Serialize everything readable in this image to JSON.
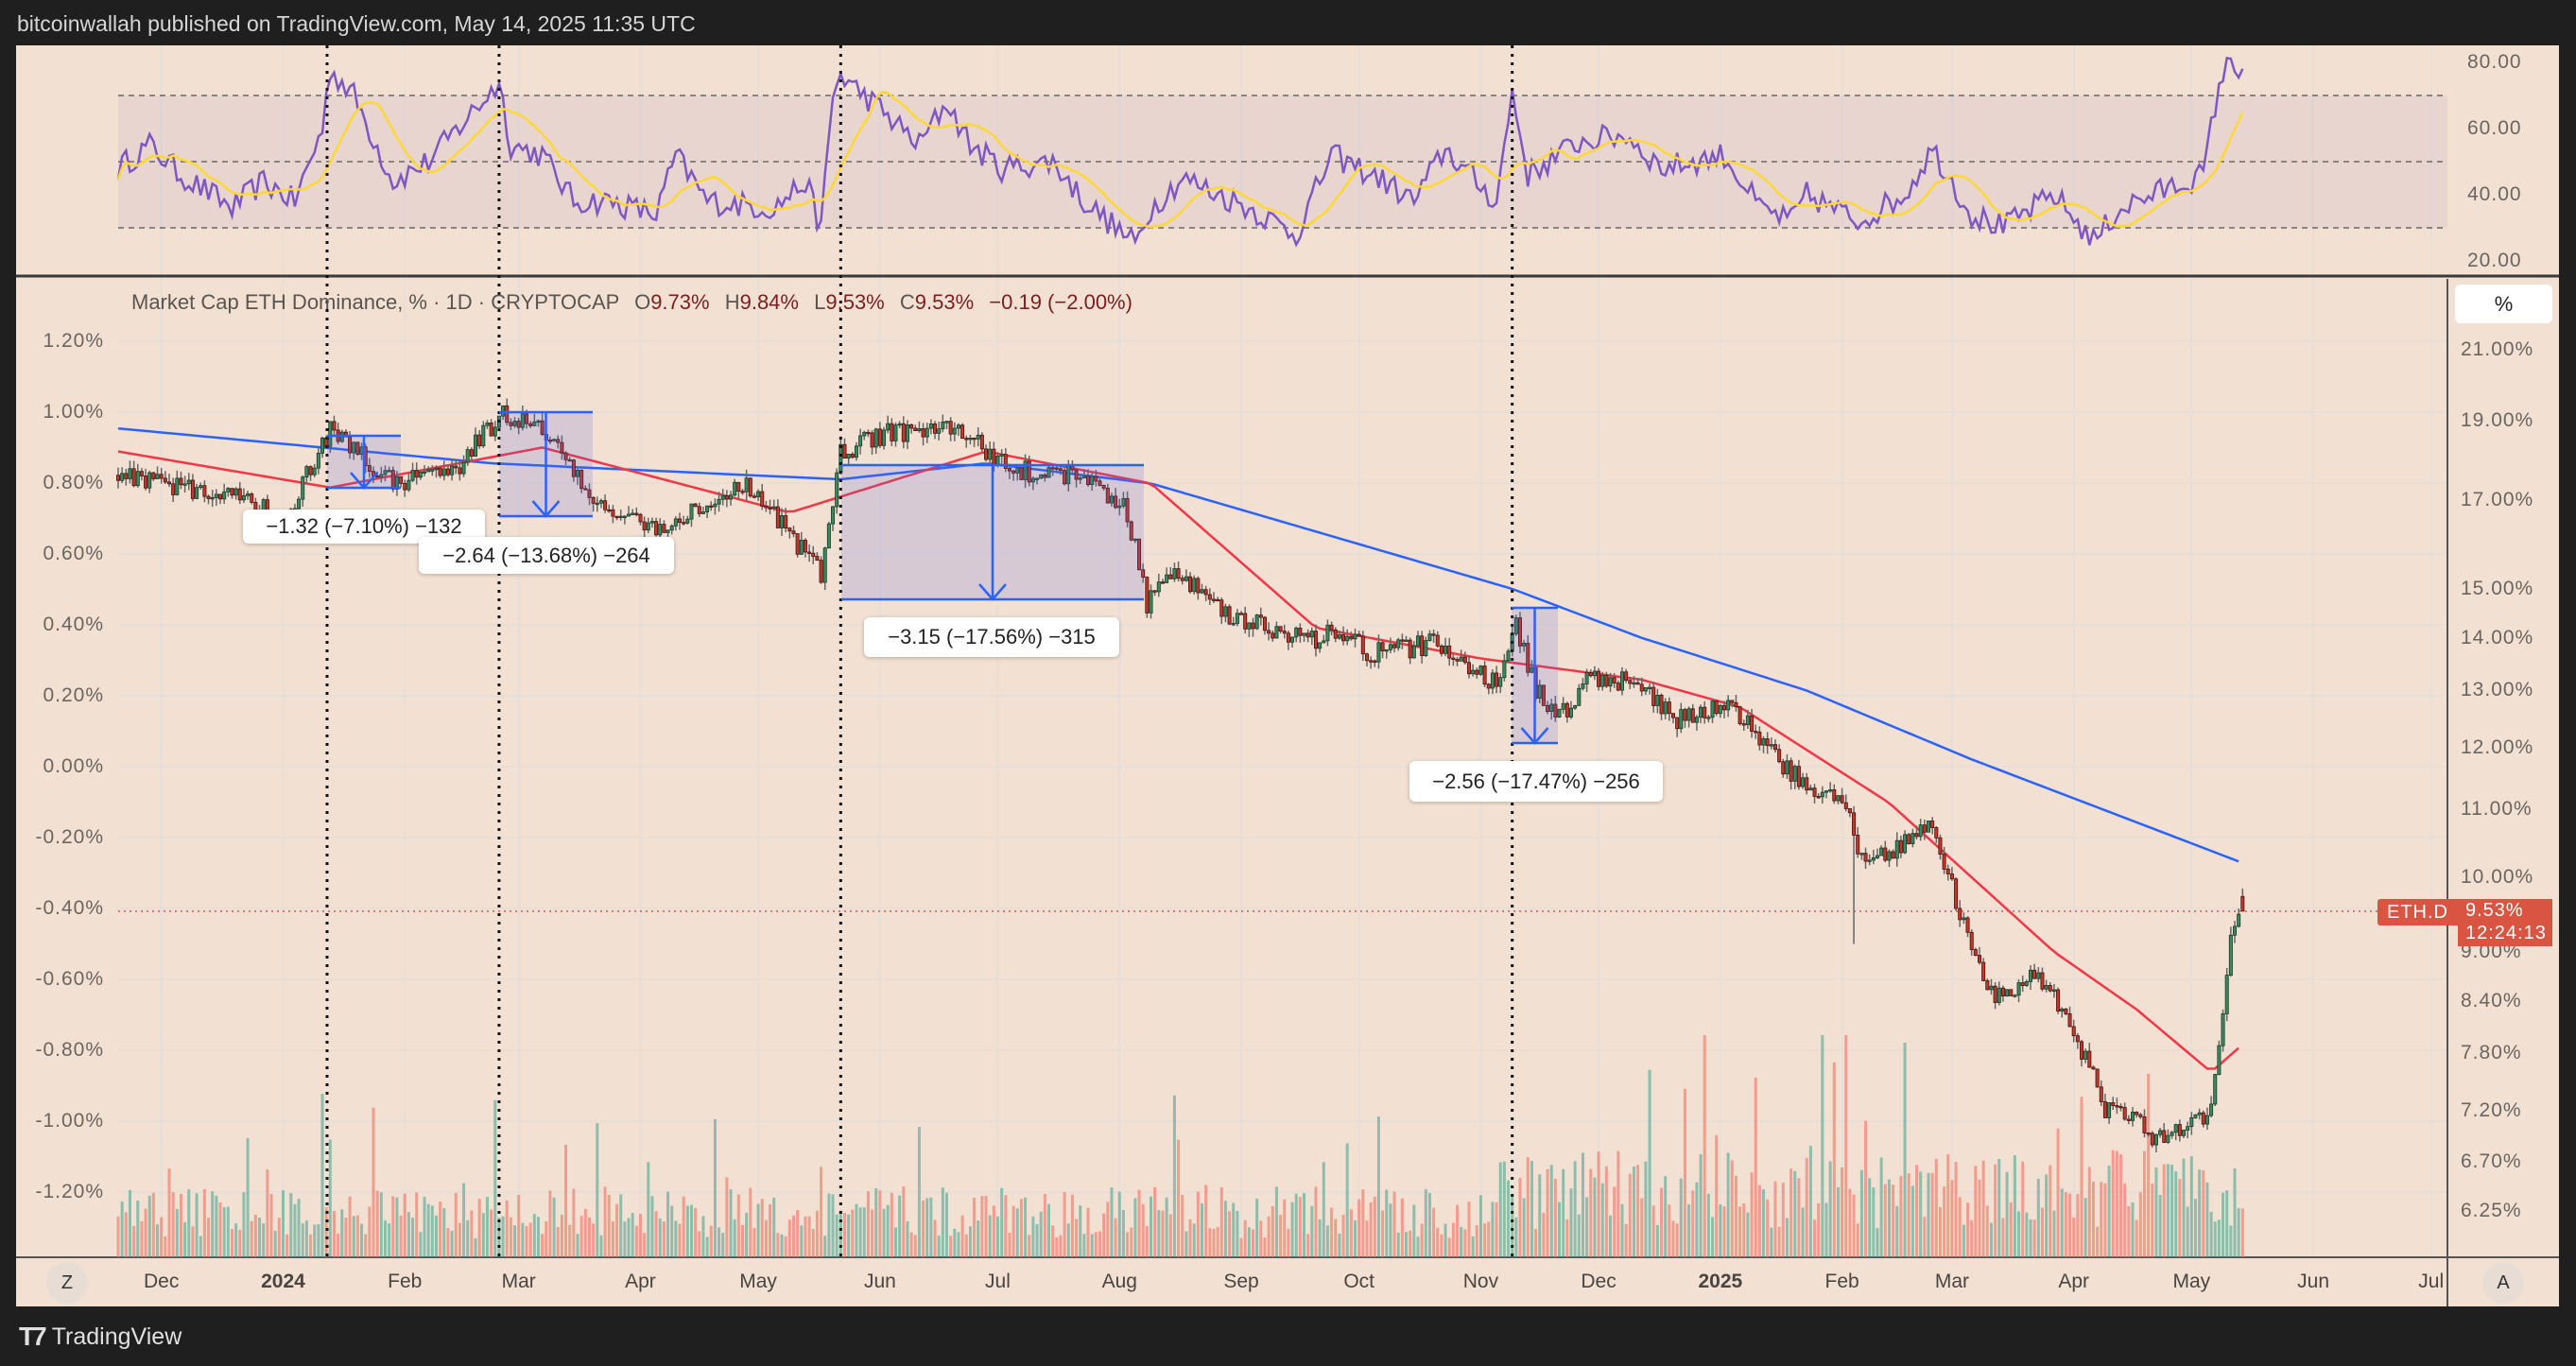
{
  "header": {
    "published": "bitcoinwallah published on TradingView.com, May 14, 2025 11:35 UTC"
  },
  "legend": {
    "title": "Market Cap ETH Dominance, % · 1D · CRYPTOCAP",
    "o_label": "O",
    "o": "9.73%",
    "h_label": "H",
    "h": "9.84%",
    "l_label": "L",
    "l": "9.53%",
    "c_label": "C",
    "c": "9.53%",
    "change": "−0.19 (−2.00%)"
  },
  "rsi_axis": [
    "80.00",
    "60.00",
    "40.00",
    "20.00"
  ],
  "right_axis": [
    "21.00%",
    "19.00%",
    "17.00%",
    "15.00%",
    "14.00%",
    "13.00%",
    "12.00%",
    "11.00%",
    "10.00%",
    "9.00%",
    "8.40%",
    "7.80%",
    "7.20%",
    "6.70%",
    "6.25%"
  ],
  "left_axis": [
    "1.20%",
    "1.00%",
    "0.80%",
    "0.60%",
    "0.40%",
    "0.20%",
    "0.00%",
    "-0.20%",
    "-0.40%",
    "-0.60%",
    "-0.80%",
    "-1.00%",
    "-1.20%"
  ],
  "time_axis": [
    "Dec",
    "2024",
    "Feb",
    "Mar",
    "Apr",
    "May",
    "Jun",
    "Jul",
    "Aug",
    "Sep",
    "Oct",
    "Nov",
    "Dec",
    "2025",
    "Feb",
    "Mar",
    "Apr",
    "May",
    "Jun",
    "Jul"
  ],
  "buttons": {
    "scale": "%",
    "auto": "A",
    "zoom": "Z"
  },
  "price_tag": {
    "symbol": "ETH.D",
    "price": "9.53%",
    "countdown": "12:24:13"
  },
  "measurements": [
    {
      "label": "−1.32 (−7.10%) −132"
    },
    {
      "label": "−2.64 (−13.68%) −264"
    },
    {
      "label": "−3.15 (−17.56%) −315"
    },
    {
      "label": "−2.56 (−17.47%) −256"
    }
  ],
  "footer": {
    "brand": "TradingView"
  },
  "colors": {
    "background": "#f2e0d2",
    "up": "#3a8a5e",
    "down": "#c0392b",
    "ma_fast": "#f23645",
    "ma_slow": "#2962ff",
    "rsi": "#7e57c2",
    "rsi_ma": "#fdd835",
    "measure": "#2962ff"
  },
  "chart_data": {
    "type": "candlestick",
    "title": "Market Cap ETH Dominance, % · 1D · CRYPTOCAP",
    "x_unit": "days since first bar",
    "price_keypoints": [
      [
        0,
        17.6
      ],
      [
        31,
        17.0
      ],
      [
        43,
        16.6
      ],
      [
        54,
        18.8
      ],
      [
        70,
        17.4
      ],
      [
        87,
        17.9
      ],
      [
        98,
        19.2
      ],
      [
        108,
        18.8
      ],
      [
        121,
        17.0
      ],
      [
        137,
        16.3
      ],
      [
        160,
        17.3
      ],
      [
        171,
        16.2
      ],
      [
        179,
        15.3
      ],
      [
        184,
        18.2
      ],
      [
        196,
        18.7
      ],
      [
        213,
        18.8
      ],
      [
        229,
        17.7
      ],
      [
        246,
        17.6
      ],
      [
        257,
        16.7
      ],
      [
        262,
        14.7
      ],
      [
        267,
        15.5
      ],
      [
        284,
        14.4
      ],
      [
        305,
        13.9
      ],
      [
        311,
        14.2
      ],
      [
        319,
        13.7
      ],
      [
        336,
        13.9
      ],
      [
        351,
        13.1
      ],
      [
        356,
        14.3
      ],
      [
        361,
        13.0
      ],
      [
        367,
        12.5
      ],
      [
        374,
        13.2
      ],
      [
        384,
        13.2
      ],
      [
        397,
        12.5
      ],
      [
        411,
        12.7
      ],
      [
        422,
        11.8
      ],
      [
        430,
        11.4
      ],
      [
        441,
        11.1
      ],
      [
        443,
        10.3
      ],
      [
        451,
        10.3
      ],
      [
        462,
        10.8
      ],
      [
        468,
        9.7
      ],
      [
        472,
        9.0
      ],
      [
        478,
        8.4
      ],
      [
        489,
        8.7
      ],
      [
        497,
        8.2
      ],
      [
        506,
        7.2
      ],
      [
        514,
        7.1
      ],
      [
        518,
        6.9
      ],
      [
        533,
        7.2
      ],
      [
        536,
        8.2
      ],
      [
        538,
        9.2
      ],
      [
        541,
        9.53
      ]
    ],
    "ma_fast_keypoints": [
      [
        0,
        18.2
      ],
      [
        54,
        17.3
      ],
      [
        108,
        18.3
      ],
      [
        171,
        16.7
      ],
      [
        221,
        18.2
      ],
      [
        263,
        17.4
      ],
      [
        305,
        14.2
      ],
      [
        347,
        13.6
      ],
      [
        388,
        13.2
      ],
      [
        413,
        12.7
      ],
      [
        451,
        11.1
      ],
      [
        493,
        9.0
      ],
      [
        514,
        8.3
      ],
      [
        533,
        7.6
      ],
      [
        541,
        7.9
      ]
    ],
    "ma_slow_keypoints": [
      [
        0,
        18.8
      ],
      [
        95,
        17.9
      ],
      [
        184,
        17.5
      ],
      [
        221,
        17.9
      ],
      [
        263,
        17.4
      ],
      [
        355,
        15.0
      ],
      [
        388,
        14.0
      ],
      [
        430,
        13.0
      ],
      [
        472,
        11.8
      ],
      [
        514,
        10.8
      ],
      [
        541,
        10.2
      ]
    ],
    "rsi_keypoints": [
      [
        0,
        48
      ],
      [
        8,
        55
      ],
      [
        16,
        46
      ],
      [
        29,
        36
      ],
      [
        37,
        44
      ],
      [
        45,
        38
      ],
      [
        52,
        60
      ],
      [
        54,
        78
      ],
      [
        60,
        70
      ],
      [
        70,
        44
      ],
      [
        79,
        50
      ],
      [
        91,
        66
      ],
      [
        97,
        74
      ],
      [
        100,
        55
      ],
      [
        108,
        52
      ],
      [
        116,
        38
      ],
      [
        125,
        38
      ],
      [
        137,
        34
      ],
      [
        142,
        52
      ],
      [
        150,
        38
      ],
      [
        167,
        36
      ],
      [
        175,
        44
      ],
      [
        179,
        30
      ],
      [
        182,
        70
      ],
      [
        184,
        76
      ],
      [
        192,
        68
      ],
      [
        204,
        55
      ],
      [
        211,
        68
      ],
      [
        217,
        55
      ],
      [
        225,
        48
      ],
      [
        238,
        50
      ],
      [
        246,
        38
      ],
      [
        259,
        25
      ],
      [
        263,
        36
      ],
      [
        271,
        45
      ],
      [
        288,
        36
      ],
      [
        300,
        28
      ],
      [
        309,
        52
      ],
      [
        321,
        45
      ],
      [
        330,
        38
      ],
      [
        338,
        54
      ],
      [
        344,
        46
      ],
      [
        351,
        38
      ],
      [
        355,
        71
      ],
      [
        359,
        46
      ],
      [
        372,
        56
      ],
      [
        384,
        58
      ],
      [
        393,
        48
      ],
      [
        409,
        52
      ],
      [
        418,
        36
      ],
      [
        426,
        32
      ],
      [
        430,
        40
      ],
      [
        443,
        32
      ],
      [
        455,
        40
      ],
      [
        462,
        54
      ],
      [
        472,
        34
      ],
      [
        480,
        30
      ],
      [
        493,
        40
      ],
      [
        503,
        26
      ],
      [
        510,
        36
      ],
      [
        518,
        40
      ],
      [
        531,
        46
      ],
      [
        535,
        74
      ],
      [
        538,
        80
      ],
      [
        541,
        78
      ]
    ],
    "rsi_levels": [
      70,
      50,
      30
    ],
    "last": {
      "open": 9.73,
      "high": 9.84,
      "low": 9.53,
      "close": 9.53
    }
  }
}
